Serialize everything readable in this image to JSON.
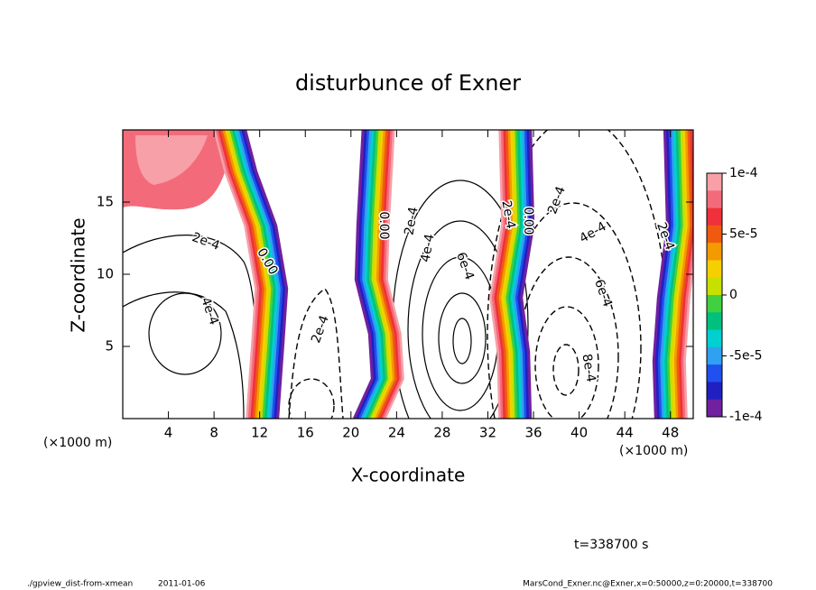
{
  "chart_data": {
    "type": "contour",
    "title": "disturbunce of Exner",
    "x_label": "X-coordinate",
    "y_label": "Z-coordinate",
    "x_unit": "(×1000 m)",
    "xlim": [
      0,
      50
    ],
    "ylim": [
      0,
      20
    ],
    "xticks": [
      4,
      8,
      12,
      16,
      20,
      24,
      28,
      32,
      36,
      40,
      44,
      48
    ],
    "yticks": [
      5,
      10,
      15
    ],
    "colorbar": {
      "lim": [
        -0.0001,
        0.0001
      ],
      "ticks": [
        {
          "value": 0.0001,
          "label": "1e-4"
        },
        {
          "value": 5e-05,
          "label": "5e-5"
        },
        0,
        {
          "value": -5e-05,
          "label": "-5e-5"
        },
        {
          "value": -0.0001,
          "label": "-1e-4"
        }
      ],
      "colors": [
        "#f7a0a8",
        "#f36b7a",
        "#f0303a",
        "#f05a10",
        "#f39a00",
        "#f5d000",
        "#c8e000",
        "#40d040",
        "#00c080",
        "#00d0d0",
        "#30a0f0",
        "#2050f0",
        "#2020c0",
        "#7020a0"
      ]
    },
    "annotations": [
      "2e-4",
      "4e-4",
      "0.00",
      "2e-4",
      "0.00",
      "2e-4",
      "4e-4",
      "6e-4",
      "2e-4",
      "0.00",
      "2e-4",
      "4e-4",
      "2e-4",
      "6e-4",
      "8e-4"
    ],
    "time_label": "t=338700 s",
    "footer_left": [
      "./gpview_dist-from-xmean",
      "2011-01-06"
    ],
    "footer_right": "MarsCond_Exner.nc@Exner,x=0:50000,z=0:20000,t=338700"
  }
}
